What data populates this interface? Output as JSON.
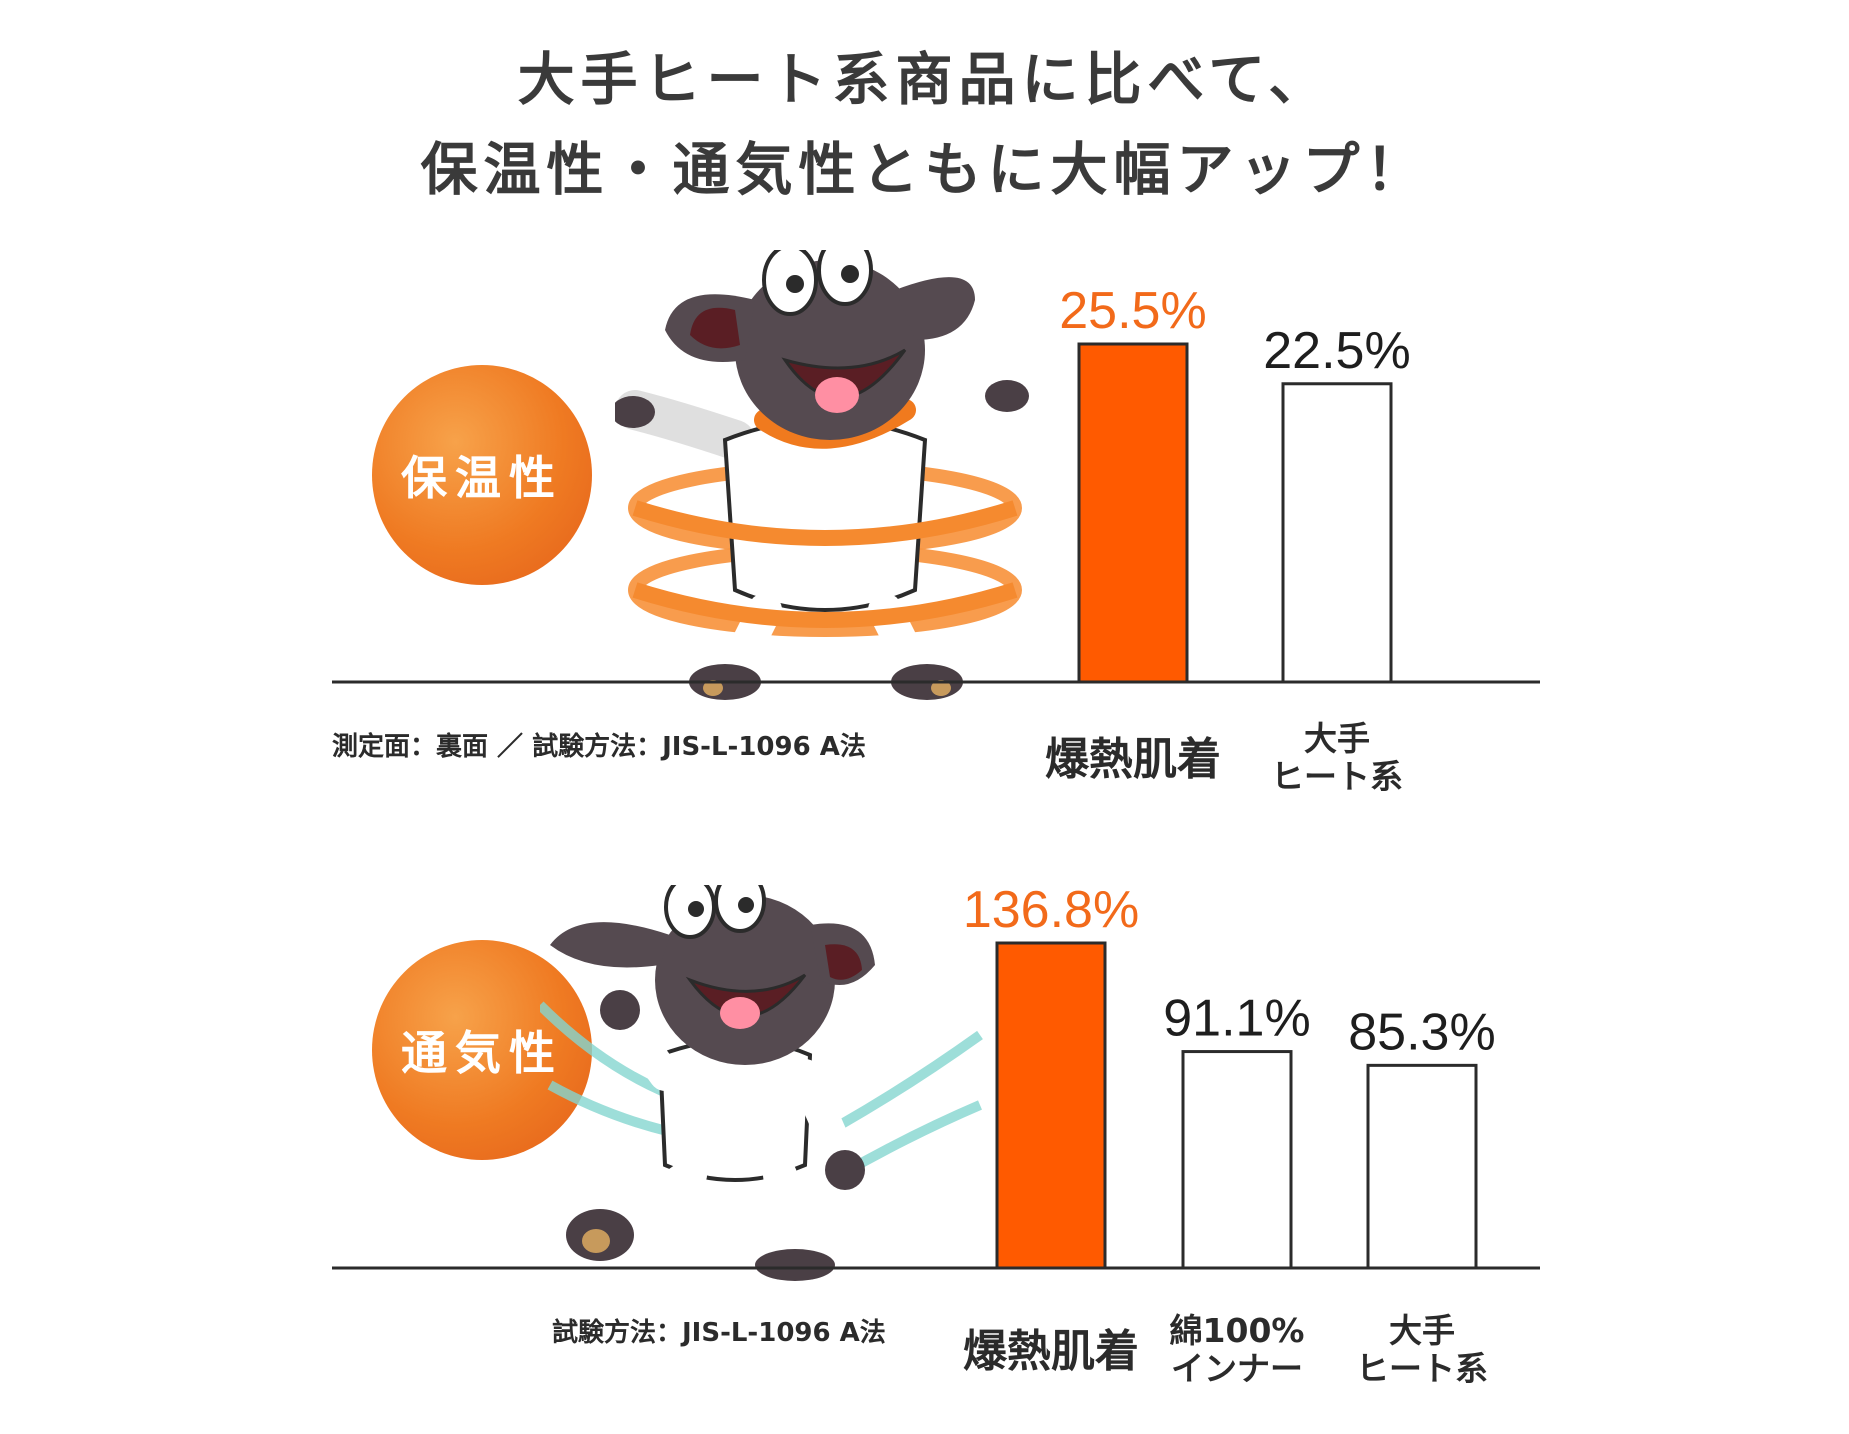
{
  "headline": {
    "line1": "大手ヒート系商品に比べて、",
    "line2": "保温性・通気性ともに大幅アップ！"
  },
  "colors": {
    "accent": "#ff5a00",
    "axis": "#2b2b2b",
    "highlight_label": "#f26a1a",
    "wind": "#7fd3cf"
  },
  "chart_data": [
    {
      "type": "bar",
      "badge": "保温性",
      "categories": [
        [
          "爆熱肌着"
        ],
        [
          "大手",
          "ヒート系"
        ]
      ],
      "values": [
        25.5,
        22.5
      ],
      "value_labels": [
        "25.5%",
        "22.5%"
      ],
      "highlight_index": 0,
      "ylim": [
        0,
        30
      ],
      "note": "測定面：裏面 ／ 試験方法：JIS-L-1096 A法"
    },
    {
      "type": "bar",
      "badge": "通気性",
      "categories": [
        [
          "爆熱肌着"
        ],
        [
          "綿100%",
          "インナー"
        ],
        [
          "大手",
          "ヒート系"
        ]
      ],
      "values": [
        136.8,
        91.1,
        85.3
      ],
      "value_labels": [
        "136.8%",
        "91.1%",
        "85.3%"
      ],
      "highlight_index": 0,
      "ylim": [
        0,
        160
      ],
      "note": "試験方法：JIS-L-1096 A法"
    }
  ]
}
